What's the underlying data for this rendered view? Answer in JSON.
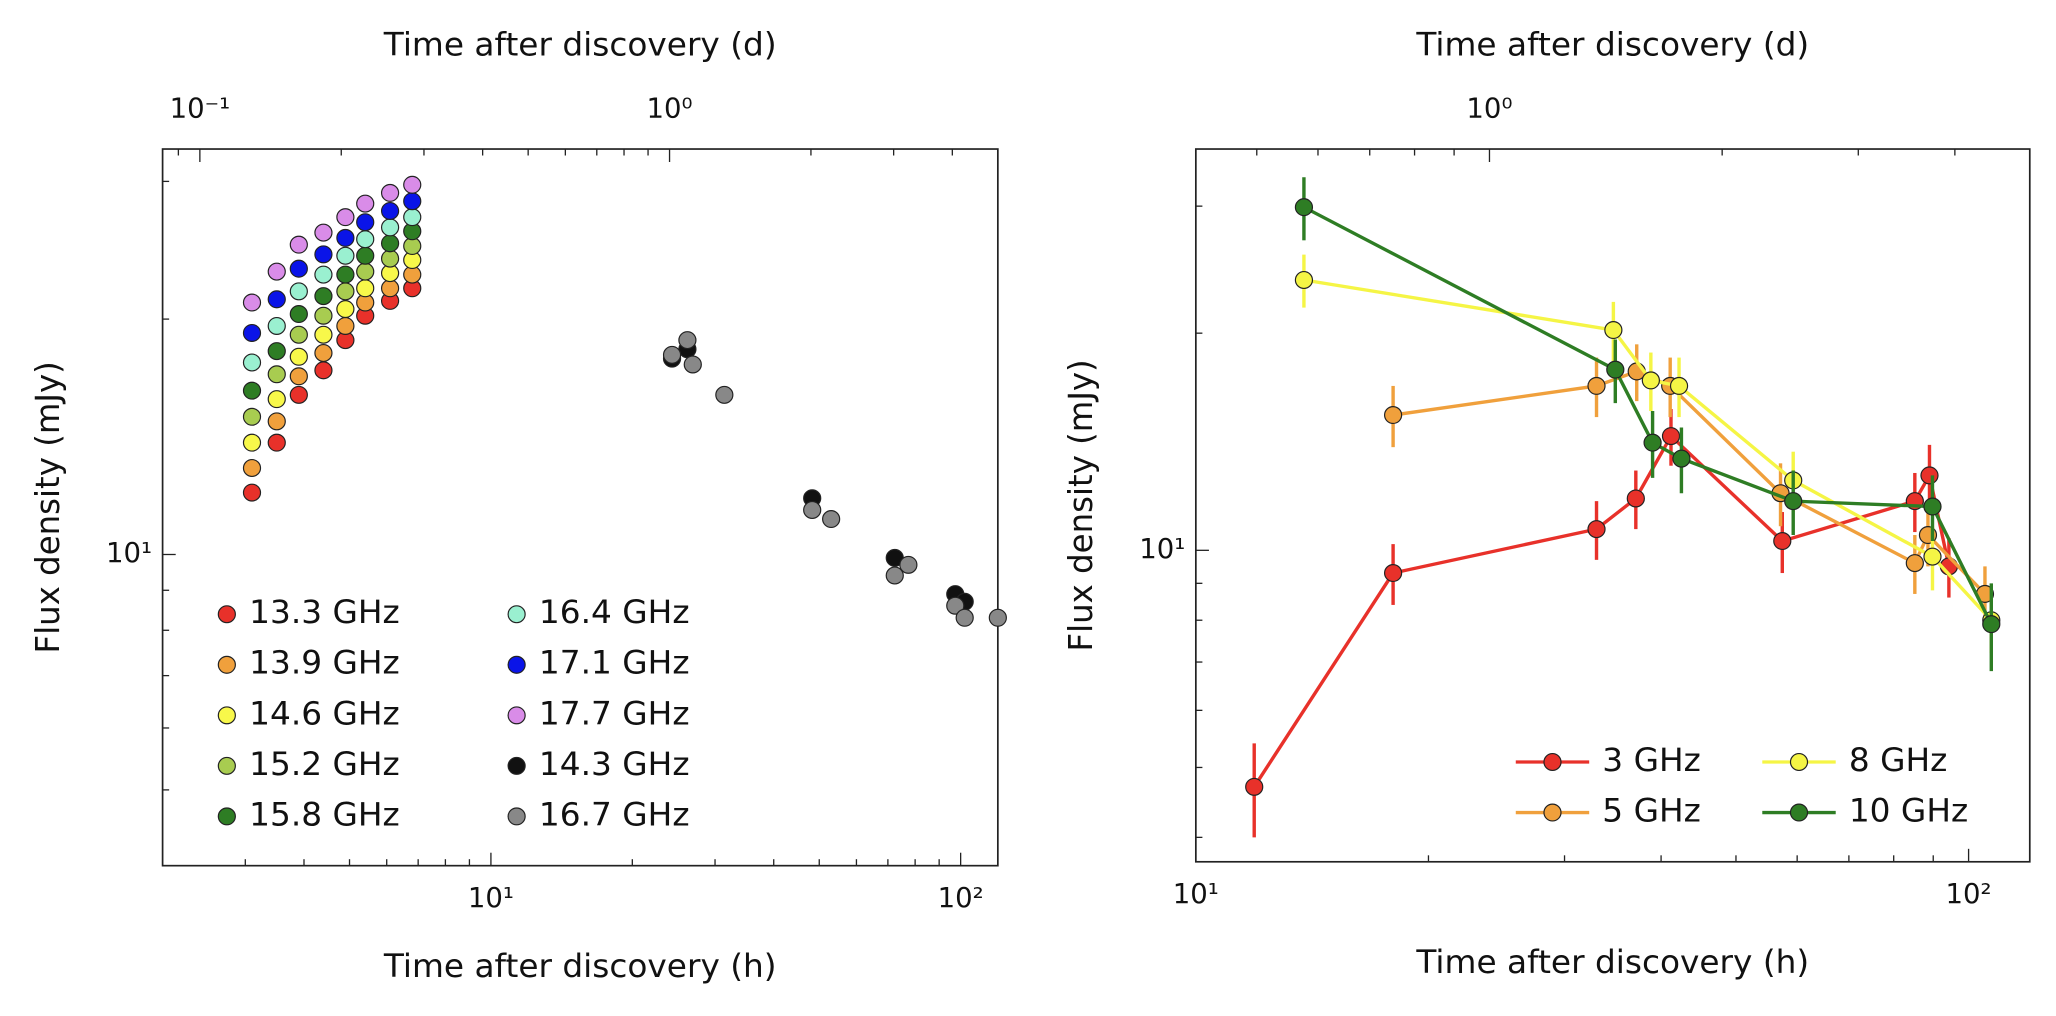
{
  "chart_data": [
    {
      "type": "scatter",
      "xlabel": "Time after discovery (h)",
      "x2label": "Time after discovery (d)",
      "ylabel": "Flux density (mJy)",
      "xscale": "log",
      "yscale": "log",
      "xlim": [
        2,
        120
      ],
      "xticks": [
        {
          "value": 10,
          "label": "10¹"
        },
        {
          "value": 100,
          "label": "10²"
        }
      ],
      "x2lim": [
        0.0833,
        5
      ],
      "x2ticks": [
        {
          "value": 0.1,
          "label": "10⁻¹"
        },
        {
          "value": 1,
          "label": "10⁰"
        }
      ],
      "ylim": [
        4,
        33
      ],
      "yticks": [
        {
          "value": 10,
          "label": "10¹"
        }
      ],
      "legend": "lower left",
      "series": [
        {
          "name": "13.3 GHz",
          "color": "#e8312a",
          "x": [
            3.1,
            3.5,
            3.9,
            4.4,
            4.9,
            5.4,
            6.1,
            6.8
          ],
          "values": [
            12.0,
            13.9,
            16.0,
            17.2,
            18.8,
            20.2,
            21.1,
            21.9
          ]
        },
        {
          "name": "13.9 GHz",
          "color": "#f0a03c",
          "x": [
            3.1,
            3.5,
            3.9,
            4.4,
            4.9,
            5.4,
            6.1,
            6.8
          ],
          "values": [
            12.9,
            14.8,
            16.9,
            18.1,
            19.6,
            21.0,
            21.9,
            22.8
          ]
        },
        {
          "name": "14.6 GHz",
          "color": "#f8f84a",
          "x": [
            3.1,
            3.5,
            3.9,
            4.4,
            4.9,
            5.4,
            6.1,
            6.8
          ],
          "values": [
            13.9,
            15.8,
            17.9,
            19.1,
            20.6,
            21.9,
            22.9,
            23.8
          ]
        },
        {
          "name": "15.2 GHz",
          "color": "#a8cc50",
          "x": [
            3.1,
            3.5,
            3.9,
            4.4,
            4.9,
            5.4,
            6.1,
            6.8
          ],
          "values": [
            15.0,
            17.0,
            19.1,
            20.2,
            21.7,
            23.0,
            23.9,
            24.8
          ]
        },
        {
          "name": "15.8 GHz",
          "color": "#2e7d24",
          "x": [
            3.1,
            3.5,
            3.9,
            4.4,
            4.9,
            5.4,
            6.1,
            6.8
          ],
          "values": [
            16.2,
            18.2,
            20.3,
            21.4,
            22.8,
            24.1,
            25.0,
            25.9
          ]
        },
        {
          "name": "16.4 GHz",
          "color": "#9af0d0",
          "x": [
            3.1,
            3.5,
            3.9,
            4.4,
            4.9,
            5.4,
            6.1,
            6.8
          ],
          "values": [
            17.6,
            19.6,
            21.7,
            22.8,
            24.1,
            25.3,
            26.2,
            27.0
          ]
        },
        {
          "name": "17.1 GHz",
          "color": "#0a14e8",
          "x": [
            3.1,
            3.5,
            3.9,
            4.4,
            4.9,
            5.4,
            6.1,
            6.8
          ],
          "values": [
            19.2,
            21.2,
            23.2,
            24.2,
            25.4,
            26.6,
            27.5,
            28.3
          ]
        },
        {
          "name": "17.7 GHz",
          "color": "#d98ce8",
          "x": [
            3.1,
            3.5,
            3.9,
            4.4,
            4.9,
            5.4,
            6.1,
            6.8
          ],
          "values": [
            21.0,
            23.0,
            24.9,
            25.8,
            27.0,
            28.1,
            29.0,
            29.7
          ]
        },
        {
          "name": "14.3 GHz",
          "color": "#111111",
          "x": [
            24.3,
            26.2,
            48.3,
            72.4,
            97.4,
            102
          ],
          "values": [
            17.8,
            18.3,
            11.8,
            9.9,
            8.9,
            8.7
          ]
        },
        {
          "name": "16.7 GHz",
          "color": "#888888",
          "x": [
            24.3,
            26.2,
            26.9,
            31.4,
            48.3,
            53,
            72.4,
            77.4,
            97.4,
            102,
            120
          ],
          "values": [
            18.0,
            18.8,
            17.5,
            16.0,
            11.4,
            11.1,
            9.4,
            9.7,
            8.6,
            8.3,
            8.3
          ]
        }
      ]
    },
    {
      "type": "line",
      "xlabel": "Time after discovery (h)",
      "x2label": "Time after discovery (d)",
      "ylabel": "Flux density (mJy)",
      "xscale": "log",
      "yscale": "log",
      "xlim": [
        10,
        120
      ],
      "xticks": [
        {
          "value": 10,
          "label": "10¹"
        },
        {
          "value": 100,
          "label": "10²"
        }
      ],
      "x2lim": [
        0.417,
        5
      ],
      "x2ticks": [
        {
          "value": 1,
          "label": "10⁰"
        }
      ],
      "ylim": [
        3.7,
        36
      ],
      "yticks": [
        {
          "value": 10,
          "label": "10¹"
        }
      ],
      "legend": "lower right",
      "series": [
        {
          "name": "3 GHz",
          "color": "#e8312a",
          "x": [
            11.9,
            18.0,
            33.0,
            37.1,
            41.2,
            57.4,
            85.2,
            89.0,
            94.3
          ],
          "values": [
            4.7,
            9.3,
            10.7,
            11.8,
            14.4,
            10.3,
            11.7,
            12.7,
            9.5
          ],
          "errors": [
            0.7,
            0.9,
            1.0,
            1.1,
            1.3,
            1.0,
            1.1,
            1.3,
            0.9
          ]
        },
        {
          "name": "5 GHz",
          "color": "#f0a03c",
          "x": [
            18.0,
            33.0,
            37.2,
            41.1,
            57.1,
            85.2,
            88.6,
            105
          ],
          "values": [
            15.4,
            16.9,
            17.7,
            16.9,
            12.0,
            9.6,
            10.5,
            8.7
          ],
          "errors": [
            1.5,
            1.6,
            1.6,
            1.6,
            1.2,
            0.9,
            1.0,
            0.8
          ]
        },
        {
          "name": "8 GHz",
          "color": "#f5f545",
          "x": [
            13.8,
            34.7,
            38.8,
            42.2,
            59.3,
            89.8,
            107
          ],
          "values": [
            23.7,
            20.2,
            17.2,
            16.9,
            12.5,
            9.8,
            8.0
          ],
          "errors": [
            2.0,
            1.9,
            1.6,
            1.6,
            1.2,
            1.0,
            0.8
          ]
        },
        {
          "name": "10 GHz",
          "color": "#2e7d24",
          "x": [
            13.8,
            34.9,
            39.0,
            42.5,
            59.3,
            89.8,
            107
          ],
          "values": [
            29.9,
            17.8,
            14.1,
            13.4,
            11.7,
            11.5,
            7.9
          ],
          "errors": [
            3.0,
            1.8,
            1.5,
            1.4,
            1.2,
            1.2,
            1.1
          ]
        }
      ]
    }
  ]
}
